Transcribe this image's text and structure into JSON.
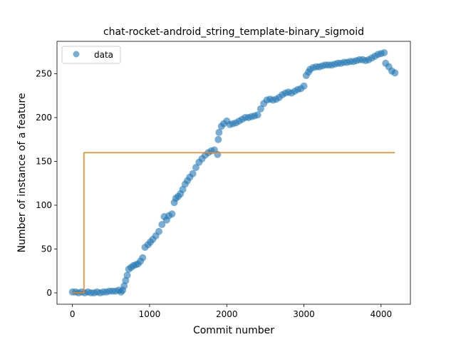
{
  "chart_data": {
    "type": "scatter",
    "title": "chat-rocket-android_string_template-binary_sigmoid",
    "xlabel": "Commit number",
    "ylabel": "Number of instance of a feature",
    "xlim": [
      -200,
      4380
    ],
    "ylim": [
      -13,
      287
    ],
    "xticks": [
      0,
      1000,
      2000,
      3000,
      4000
    ],
    "yticks": [
      0,
      50,
      100,
      150,
      200,
      250
    ],
    "grid": false,
    "legend": {
      "position": "upper-left",
      "entries": [
        "data"
      ]
    },
    "colors": {
      "data": "#1f77b4",
      "fit": "#ff7f0e"
    },
    "series": [
      {
        "name": "data",
        "kind": "scatter",
        "points": [
          [
            0,
            1
          ],
          [
            40,
            1
          ],
          [
            80,
            0
          ],
          [
            120,
            1
          ],
          [
            160,
            0
          ],
          [
            200,
            1
          ],
          [
            240,
            0
          ],
          [
            280,
            0
          ],
          [
            320,
            1
          ],
          [
            360,
            0
          ],
          [
            400,
            1
          ],
          [
            440,
            1
          ],
          [
            480,
            2
          ],
          [
            520,
            2
          ],
          [
            560,
            2
          ],
          [
            600,
            3
          ],
          [
            630,
            1
          ],
          [
            650,
            3
          ],
          [
            670,
            8
          ],
          [
            690,
            14
          ],
          [
            710,
            20
          ],
          [
            730,
            27
          ],
          [
            760,
            29
          ],
          [
            790,
            31
          ],
          [
            820,
            32
          ],
          [
            850,
            33
          ],
          [
            880,
            36
          ],
          [
            910,
            40
          ],
          [
            940,
            52
          ],
          [
            980,
            55
          ],
          [
            1010,
            58
          ],
          [
            1040,
            61
          ],
          [
            1080,
            65
          ],
          [
            1120,
            70
          ],
          [
            1160,
            78
          ],
          [
            1190,
            87
          ],
          [
            1220,
            83
          ],
          [
            1250,
            88
          ],
          [
            1290,
            90
          ],
          [
            1320,
            103
          ],
          [
            1340,
            108
          ],
          [
            1370,
            110
          ],
          [
            1400,
            113
          ],
          [
            1430,
            118
          ],
          [
            1460,
            124
          ],
          [
            1490,
            128
          ],
          [
            1520,
            132
          ],
          [
            1560,
            136
          ],
          [
            1600,
            143
          ],
          [
            1640,
            149
          ],
          [
            1680,
            153
          ],
          [
            1720,
            157
          ],
          [
            1760,
            160
          ],
          [
            1800,
            162
          ],
          [
            1840,
            163
          ],
          [
            1880,
            158
          ],
          [
            1890,
            175
          ],
          [
            1900,
            183
          ],
          [
            1930,
            190
          ],
          [
            1960,
            193
          ],
          [
            2000,
            196
          ],
          [
            2040,
            192
          ],
          [
            2080,
            193
          ],
          [
            2120,
            194
          ],
          [
            2160,
            196
          ],
          [
            2200,
            198
          ],
          [
            2240,
            200
          ],
          [
            2280,
            200
          ],
          [
            2320,
            201
          ],
          [
            2360,
            202
          ],
          [
            2400,
            203
          ],
          [
            2440,
            210
          ],
          [
            2480,
            216
          ],
          [
            2520,
            220
          ],
          [
            2560,
            221
          ],
          [
            2600,
            220
          ],
          [
            2640,
            221
          ],
          [
            2680,
            223
          ],
          [
            2720,
            226
          ],
          [
            2760,
            228
          ],
          [
            2800,
            229
          ],
          [
            2840,
            228
          ],
          [
            2880,
            230
          ],
          [
            2920,
            232
          ],
          [
            2960,
            233
          ],
          [
            3000,
            236
          ],
          [
            3030,
            248
          ],
          [
            3060,
            252
          ],
          [
            3080,
            255
          ],
          [
            3120,
            257
          ],
          [
            3160,
            258
          ],
          [
            3200,
            258
          ],
          [
            3240,
            259
          ],
          [
            3280,
            260
          ],
          [
            3320,
            260
          ],
          [
            3360,
            260
          ],
          [
            3400,
            261
          ],
          [
            3440,
            262
          ],
          [
            3480,
            262
          ],
          [
            3520,
            263
          ],
          [
            3560,
            263
          ],
          [
            3600,
            264
          ],
          [
            3640,
            264
          ],
          [
            3680,
            265
          ],
          [
            3720,
            266
          ],
          [
            3760,
            266
          ],
          [
            3800,
            265
          ],
          [
            3840,
            266
          ],
          [
            3880,
            268
          ],
          [
            3920,
            270
          ],
          [
            3960,
            272
          ],
          [
            4000,
            273
          ],
          [
            4040,
            274
          ],
          [
            4060,
            262
          ],
          [
            4100,
            258
          ],
          [
            4140,
            253
          ],
          [
            4180,
            251
          ]
        ]
      },
      {
        "name": "",
        "kind": "line",
        "points": [
          [
            0,
            0
          ],
          [
            150,
            0
          ],
          [
            150,
            160
          ],
          [
            4180,
            160
          ]
        ]
      }
    ]
  }
}
